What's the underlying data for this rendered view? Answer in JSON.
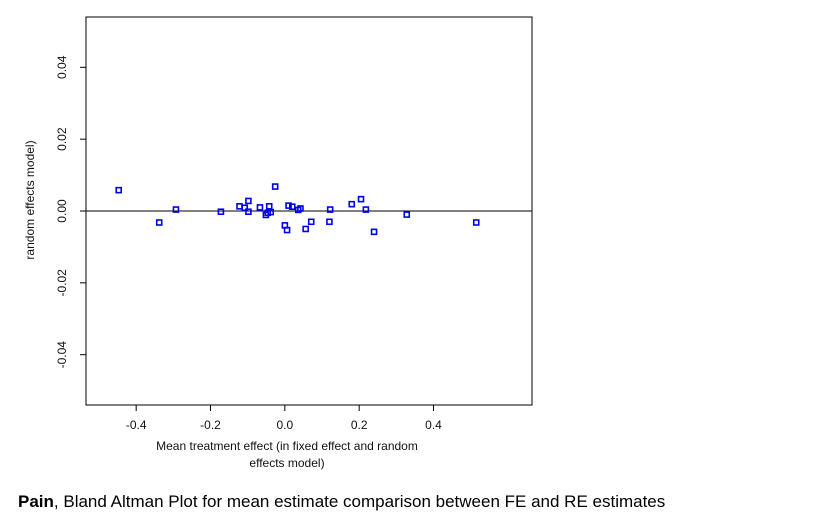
{
  "chart_data": {
    "type": "scatter",
    "title": "",
    "xlabel_lines": [
      "Mean treatment effect (in fixed effect and random",
      "effects model)"
    ],
    "ylabel": "random effects model)",
    "xlim": [
      -0.535,
      0.665
    ],
    "ylim": [
      -0.054,
      0.054
    ],
    "xticks": [
      -0.4,
      -0.2,
      0.0,
      0.2,
      0.4
    ],
    "xtick_labels": [
      "-0.4",
      "-0.2",
      "0.0",
      "0.2",
      "0.4"
    ],
    "yticks": [
      -0.04,
      -0.02,
      0.0,
      0.02,
      0.04
    ],
    "ytick_labels": [
      "-0.04",
      "-0.02",
      "0.00",
      "0.02",
      "0.04"
    ],
    "reference_line_y": 0.0,
    "marker_color": "#0000ee",
    "points": [
      {
        "x": -0.447,
        "y": 0.0058
      },
      {
        "x": -0.338,
        "y": -0.0032
      },
      {
        "x": -0.293,
        "y": 0.0004
      },
      {
        "x": -0.172,
        "y": -0.0002
      },
      {
        "x": -0.122,
        "y": 0.0013
      },
      {
        "x": -0.108,
        "y": 0.0009
      },
      {
        "x": -0.098,
        "y": 0.0028
      },
      {
        "x": -0.098,
        "y": -0.0002
      },
      {
        "x": -0.067,
        "y": 0.001
      },
      {
        "x": -0.051,
        "y": -0.0011
      },
      {
        "x": -0.046,
        "y": -0.0005
      },
      {
        "x": -0.042,
        "y": 0.0013
      },
      {
        "x": -0.038,
        "y": -0.0003
      },
      {
        "x": -0.026,
        "y": 0.0068
      },
      {
        "x": 0.0,
        "y": -0.004
      },
      {
        "x": 0.006,
        "y": -0.0053
      },
      {
        "x": 0.01,
        "y": 0.0015
      },
      {
        "x": 0.02,
        "y": 0.0012
      },
      {
        "x": 0.036,
        "y": 0.0003
      },
      {
        "x": 0.042,
        "y": 0.0007
      },
      {
        "x": 0.056,
        "y": -0.005
      },
      {
        "x": 0.071,
        "y": -0.003
      },
      {
        "x": 0.12,
        "y": -0.003
      },
      {
        "x": 0.122,
        "y": 0.0004
      },
      {
        "x": 0.18,
        "y": 0.0019
      },
      {
        "x": 0.205,
        "y": 0.0033
      },
      {
        "x": 0.218,
        "y": 0.0004
      },
      {
        "x": 0.24,
        "y": -0.0058
      },
      {
        "x": 0.328,
        "y": -0.001
      },
      {
        "x": 0.515,
        "y": -0.0032
      }
    ]
  },
  "caption": {
    "bold": "Pain",
    "rest": ", Bland Altman Plot for mean estimate  comparison between FE and RE estimates"
  }
}
